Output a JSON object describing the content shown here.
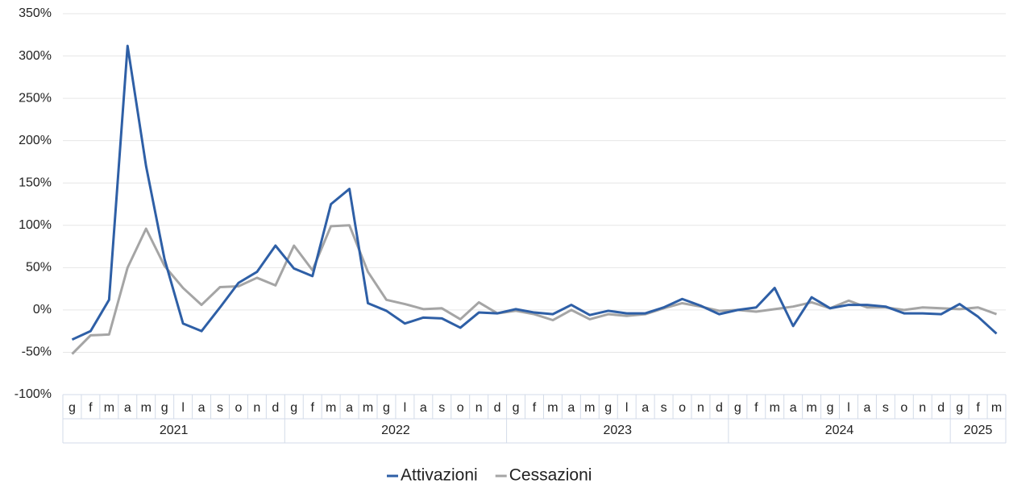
{
  "chart_data": {
    "type": "line",
    "categories": [
      "g",
      "f",
      "m",
      "a",
      "m",
      "g",
      "l",
      "a",
      "s",
      "o",
      "n",
      "d",
      "g",
      "f",
      "m",
      "a",
      "m",
      "g",
      "l",
      "a",
      "s",
      "o",
      "n",
      "d",
      "g",
      "f",
      "m",
      "a",
      "m",
      "g",
      "l",
      "a",
      "s",
      "o",
      "n",
      "d",
      "g",
      "f",
      "m",
      "a",
      "m",
      "g",
      "l",
      "a",
      "s",
      "o",
      "n",
      "d",
      "g",
      "f",
      "m"
    ],
    "groups": [
      {
        "label": "2021",
        "count": 12
      },
      {
        "label": "2022",
        "count": 12
      },
      {
        "label": "2023",
        "count": 12
      },
      {
        "label": "2024",
        "count": 12
      },
      {
        "label": "2025",
        "count": 3
      }
    ],
    "series": [
      {
        "name": "Attivazioni",
        "color": "#2e5fa6",
        "values": [
          -35,
          -25,
          12,
          312,
          170,
          60,
          -16,
          -25,
          3,
          32,
          45,
          76,
          49,
          40,
          125,
          143,
          8,
          -1,
          -16,
          -9,
          -10,
          -21,
          -3,
          -4,
          1,
          -3,
          -5,
          6,
          -6,
          -1,
          -4,
          -4,
          3,
          13,
          5,
          -5,
          0,
          3,
          26,
          -19,
          15,
          2,
          6,
          6,
          4,
          -4,
          -4,
          -5,
          7,
          -8,
          -28
        ]
      },
      {
        "name": "Cessazioni",
        "color": "#a5a5a5",
        "values": [
          -52,
          -30,
          -29,
          50,
          96,
          52,
          26,
          6,
          27,
          28,
          38,
          29,
          76,
          47,
          99,
          100,
          45,
          12,
          7,
          1,
          2,
          -11,
          9,
          -4,
          -1,
          -5,
          -12,
          0,
          -11,
          -5,
          -7,
          -5,
          2,
          8,
          4,
          -1,
          0,
          -2,
          1,
          4,
          9,
          2,
          11,
          3,
          3,
          0,
          3,
          2,
          1,
          3,
          -5
        ]
      }
    ],
    "ylim": [
      -100,
      350
    ],
    "yticks": [
      {
        "value": -100,
        "label": "-100%"
      },
      {
        "value": -50,
        "label": "-50%"
      },
      {
        "value": 0,
        "label": "0%"
      },
      {
        "value": 50,
        "label": "50%"
      },
      {
        "value": 100,
        "label": "100%"
      },
      {
        "value": 150,
        "label": "150%"
      },
      {
        "value": 200,
        "label": "200%"
      },
      {
        "value": 250,
        "label": "250%"
      },
      {
        "value": 300,
        "label": "300%"
      },
      {
        "value": 350,
        "label": "350%"
      }
    ],
    "grid": true,
    "legend": "bottom"
  }
}
